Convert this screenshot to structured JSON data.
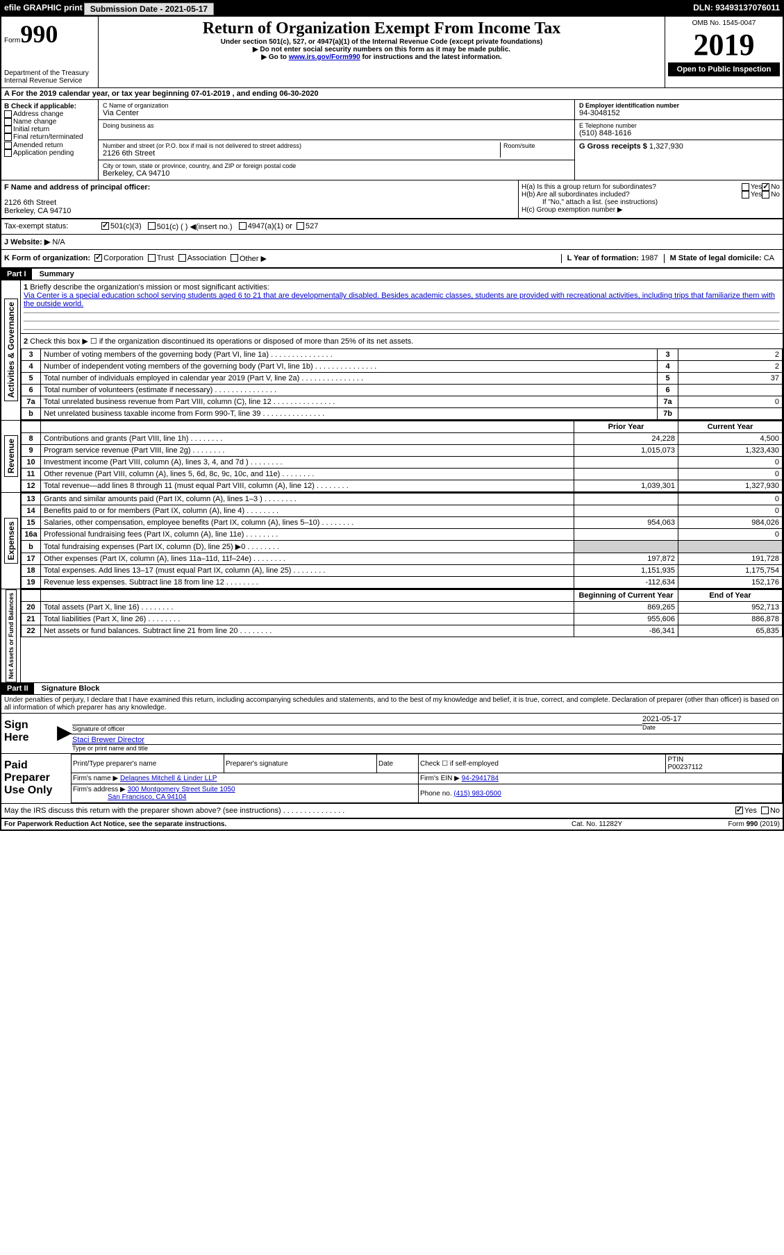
{
  "topbar": {
    "efile": "efile GRAPHIC print",
    "submission_label": "Submission Date - 2021-05-17",
    "dln": "DLN: 93493137076011"
  },
  "header": {
    "form_label": "Form",
    "form_num": "990",
    "title": "Return of Organization Exempt From Income Tax",
    "subtitle": "Under section 501(c), 527, or 4947(a)(1) of the Internal Revenue Code (except private foundations)",
    "note1": "▶ Do not enter social security numbers on this form as it may be made public.",
    "note2_pre": "▶ Go to ",
    "note2_link": "www.irs.gov/Form990",
    "note2_post": " for instructions and the latest information.",
    "dept": "Department of the Treasury\nInternal Revenue Service",
    "omb": "OMB No. 1545-0047",
    "year": "2019",
    "inspection": "Open to Public Inspection"
  },
  "section_a": "A For the 2019 calendar year, or tax year beginning 07-01-2019   , and ending 06-30-2020",
  "col_b": {
    "header": "B Check if applicable:",
    "items": [
      "Address change",
      "Name change",
      "Initial return",
      "Final return/terminated",
      "Amended return",
      "Application pending"
    ]
  },
  "org": {
    "name_label": "C Name of organization",
    "name": "Via Center",
    "dba_label": "Doing business as",
    "addr_label": "Number and street (or P.O. box if mail is not delivered to street address)",
    "room_label": "Room/suite",
    "addr": "2126 6th Street",
    "city_label": "City or town, state or province, country, and ZIP or foreign postal code",
    "city": "Berkeley, CA  94710"
  },
  "col_de": {
    "ein_label": "D Employer identification number",
    "ein": "94-3048152",
    "phone_label": "E Telephone number",
    "phone": "(510) 848-1616",
    "gross_label": "G Gross receipts $",
    "gross": "1,327,930"
  },
  "f": {
    "label": "F  Name and address of principal officer:",
    "addr1": "2126 6th Street",
    "addr2": "Berkeley, CA  94710"
  },
  "h": {
    "a_label": "H(a)  Is this a group return for subordinates?",
    "b_label": "H(b)  Are all subordinates included?",
    "b_note": "If \"No,\" attach a list. (see instructions)",
    "c_label": "H(c)  Group exemption number ▶"
  },
  "tax_status": {
    "label": "Tax-exempt status:",
    "opts": [
      "501(c)(3)",
      "501(c) (  ) ◀(insert no.)",
      "4947(a)(1) or",
      "527"
    ]
  },
  "website": {
    "label": "J  Website: ▶",
    "value": "N/A"
  },
  "k": {
    "label": "K Form of organization:",
    "opts": [
      "Corporation",
      "Trust",
      "Association",
      "Other ▶"
    ],
    "l_label": "L Year of formation:",
    "l_val": "1987",
    "m_label": "M State of legal domicile:",
    "m_val": "CA"
  },
  "part1": {
    "label": "Part I",
    "title": "Summary",
    "q1": "Briefly describe the organization's mission or most significant activities:",
    "mission": "Via Center is a special education school serving students aged 6 to 21 that are developmentally disabled. Besides academic classes, students are provided with recreational activities, including trips that familiarize them with the outside world.",
    "q2": "Check this box ▶ ☐ if the organization discontinued its operations or disposed of more than 25% of its net assets.",
    "lines": [
      {
        "n": "3",
        "t": "Number of voting members of the governing body (Part VI, line 1a)",
        "box": "3",
        "v": "2"
      },
      {
        "n": "4",
        "t": "Number of independent voting members of the governing body (Part VI, line 1b)",
        "box": "4",
        "v": "2"
      },
      {
        "n": "5",
        "t": "Total number of individuals employed in calendar year 2019 (Part V, line 2a)",
        "box": "5",
        "v": "37"
      },
      {
        "n": "6",
        "t": "Total number of volunteers (estimate if necessary)",
        "box": "6",
        "v": ""
      },
      {
        "n": "7a",
        "t": "Total unrelated business revenue from Part VIII, column (C), line 12",
        "box": "7a",
        "v": "0"
      },
      {
        "n": "b",
        "t": "Net unrelated business taxable income from Form 990-T, line 39",
        "box": "7b",
        "v": ""
      }
    ],
    "prior_label": "Prior Year",
    "current_label": "Current Year",
    "rev_lines": [
      {
        "n": "8",
        "t": "Contributions and grants (Part VIII, line 1h)",
        "py": "24,228",
        "cy": "4,500"
      },
      {
        "n": "9",
        "t": "Program service revenue (Part VIII, line 2g)",
        "py": "1,015,073",
        "cy": "1,323,430"
      },
      {
        "n": "10",
        "t": "Investment income (Part VIII, column (A), lines 3, 4, and 7d )",
        "py": "",
        "cy": "0"
      },
      {
        "n": "11",
        "t": "Other revenue (Part VIII, column (A), lines 5, 6d, 8c, 9c, 10c, and 11e)",
        "py": "",
        "cy": "0"
      },
      {
        "n": "12",
        "t": "Total revenue—add lines 8 through 11 (must equal Part VIII, column (A), line 12)",
        "py": "1,039,301",
        "cy": "1,327,930"
      }
    ],
    "exp_lines": [
      {
        "n": "13",
        "t": "Grants and similar amounts paid (Part IX, column (A), lines 1–3 )",
        "py": "",
        "cy": "0"
      },
      {
        "n": "14",
        "t": "Benefits paid to or for members (Part IX, column (A), line 4)",
        "py": "",
        "cy": "0"
      },
      {
        "n": "15",
        "t": "Salaries, other compensation, employee benefits (Part IX, column (A), lines 5–10)",
        "py": "954,063",
        "cy": "984,026"
      },
      {
        "n": "16a",
        "t": "Professional fundraising fees (Part IX, column (A), line 11e)",
        "py": "",
        "cy": "0"
      },
      {
        "n": "b",
        "t": "Total fundraising expenses (Part IX, column (D), line 25) ▶0",
        "py": "shaded",
        "cy": "shaded"
      },
      {
        "n": "17",
        "t": "Other expenses (Part IX, column (A), lines 11a–11d, 11f–24e)",
        "py": "197,872",
        "cy": "191,728"
      },
      {
        "n": "18",
        "t": "Total expenses. Add lines 13–17 (must equal Part IX, column (A), line 25)",
        "py": "1,151,935",
        "cy": "1,175,754"
      },
      {
        "n": "19",
        "t": "Revenue less expenses. Subtract line 18 from line 12",
        "py": "-112,634",
        "cy": "152,176"
      }
    ],
    "bcy_label": "Beginning of Current Year",
    "eoy_label": "End of Year",
    "net_lines": [
      {
        "n": "20",
        "t": "Total assets (Part X, line 16)",
        "py": "869,265",
        "cy": "952,713"
      },
      {
        "n": "21",
        "t": "Total liabilities (Part X, line 26)",
        "py": "955,606",
        "cy": "886,878"
      },
      {
        "n": "22",
        "t": "Net assets or fund balances. Subtract line 21 from line 20",
        "py": "-86,341",
        "cy": "65,835"
      }
    ],
    "vert_labels": {
      "gov": "Activities & Governance",
      "rev": "Revenue",
      "exp": "Expenses",
      "net": "Net Assets or Fund Balances"
    }
  },
  "part2": {
    "label": "Part II",
    "title": "Signature Block",
    "penalty": "Under penalties of perjury, I declare that I have examined this return, including accompanying schedules and statements, and to the best of my knowledge and belief, it is true, correct, and complete. Declaration of preparer (other than officer) is based on all information of which preparer has any knowledge.",
    "sign_here": "Sign Here",
    "sig_officer": "Signature of officer",
    "date": "2021-05-17",
    "date_label": "Date",
    "name_title": "Staci Brewer  Director",
    "name_label": "Type or print name and title",
    "paid": "Paid Preparer Use Only",
    "prep_name_label": "Print/Type preparer's name",
    "prep_sig_label": "Preparer's signature",
    "check_label": "Check ☐ if self-employed",
    "ptin_label": "PTIN",
    "ptin": "P00237112",
    "firm_name_label": "Firm's name    ▶",
    "firm_name": "Delagnes Mitchell & Linder LLP",
    "firm_ein_label": "Firm's EIN ▶",
    "firm_ein": "94-2941784",
    "firm_addr_label": "Firm's address ▶",
    "firm_addr1": "300 Montgomery Street Suite 1050",
    "firm_addr2": "San Francisco, CA  94104",
    "phone_label": "Phone no.",
    "phone": "(415) 983-0500",
    "discuss": "May the IRS discuss this return with the preparer shown above? (see instructions)"
  },
  "footer": {
    "left": "For Paperwork Reduction Act Notice, see the separate instructions.",
    "mid": "Cat. No. 11282Y",
    "right": "Form 990 (2019)"
  }
}
